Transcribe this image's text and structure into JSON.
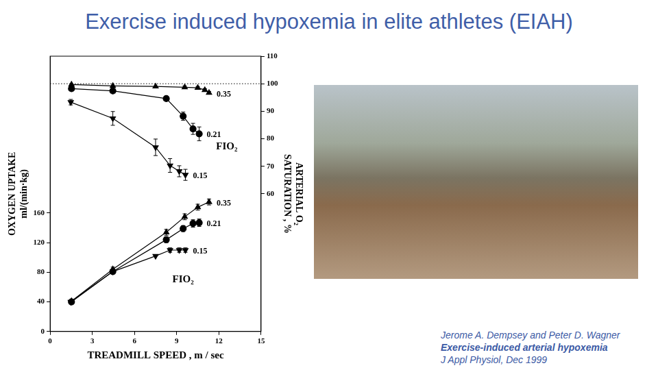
{
  "title": "Exercise induced hypoxemia in elite athletes (EIAH)",
  "citation": {
    "authors": "Jerome A. Dempsey and Peter D. Wagner",
    "article": "Exercise-induced arterial hypoxemia",
    "journal": "J Appl Physiol, Dec 1999"
  },
  "chart_data": {
    "type": "line",
    "x_label": "TREADMILL SPEED , m / sec",
    "y_label": [
      "OXYGEN UPTAKE",
      "ml/(min·kg)"
    ],
    "y2_label": [
      "ARTERIAL O₂",
      "SATURATION , %"
    ],
    "xlim": [
      0,
      15
    ],
    "xticks": [
      0,
      3,
      6,
      9,
      12,
      15
    ],
    "ylim": [
      0,
      372
    ],
    "yticks": [
      0,
      40,
      80,
      120,
      160
    ],
    "y2lim": [
      10,
      110
    ],
    "y2ticks": [
      60,
      70,
      80,
      90,
      100,
      110
    ],
    "grid": false,
    "legend": false,
    "reference_lines": [
      {
        "axis": "y2",
        "value": 100,
        "line_style": "dotted"
      }
    ],
    "annotations": [
      {
        "text": "FIO₂",
        "x": 11.8,
        "y": 77,
        "axis": "y2"
      },
      {
        "text": "FIO₂",
        "x": 8.7,
        "y": 70,
        "axis": "y"
      }
    ],
    "series": [
      {
        "name": "0.35",
        "axis": "y2",
        "marker": "triangle",
        "color": "#000000",
        "x": [
          1.52,
          4.46,
          7.5,
          9.57,
          10.5,
          11.0,
          11.3
        ],
        "values": [
          99.7,
          99.2,
          99.0,
          98.7,
          98.5,
          97.7,
          96.7
        ],
        "errors": [
          0,
          0,
          0,
          0.5,
          0.5,
          0.5,
          0.5
        ]
      },
      {
        "name": "0.21",
        "axis": "y2",
        "marker": "circle",
        "color": "#000000",
        "x": [
          1.52,
          4.46,
          8.26,
          9.46,
          10.16,
          10.6
        ],
        "values": [
          98.2,
          97.4,
          94.6,
          88.2,
          83.6,
          81.8
        ],
        "errors": [
          0,
          0,
          0,
          1.5,
          2,
          2.5
        ]
      },
      {
        "name": "0.15",
        "axis": "y2",
        "marker": "triangle_down",
        "color": "#000000",
        "x": [
          1.47,
          4.46,
          7.5,
          8.53,
          9.18,
          9.62
        ],
        "values": [
          93.3,
          87.4,
          76.9,
          70.3,
          68.2,
          66.9
        ],
        "errors": [
          1,
          2.5,
          3,
          2.5,
          2,
          2
        ]
      },
      {
        "name": "0.35",
        "axis": "y",
        "marker": "triangle",
        "color": "#000000",
        "x": [
          1.52,
          4.46,
          8.26,
          9.57,
          10.5,
          11.3
        ],
        "values": [
          41,
          84,
          134,
          155,
          168,
          175
        ],
        "errors": [
          0,
          3,
          4,
          4,
          4,
          4
        ]
      },
      {
        "name": "0.21",
        "axis": "y",
        "marker": "circle",
        "color": "#000000",
        "x": [
          1.52,
          4.46,
          8.26,
          9.46,
          10.16,
          10.6
        ],
        "values": [
          40,
          81,
          124,
          139,
          146,
          147
        ],
        "errors": [
          0,
          0,
          4,
          4,
          5,
          5
        ]
      },
      {
        "name": "0.15",
        "axis": "y",
        "marker": "triangle_down",
        "color": "#000000",
        "x": [
          1.47,
          4.46,
          7.5,
          8.53,
          9.18,
          9.62
        ],
        "values": [
          40,
          81,
          102,
          110,
          110,
          110
        ],
        "errors": [
          0,
          0,
          0,
          3,
          3,
          3
        ]
      }
    ]
  }
}
